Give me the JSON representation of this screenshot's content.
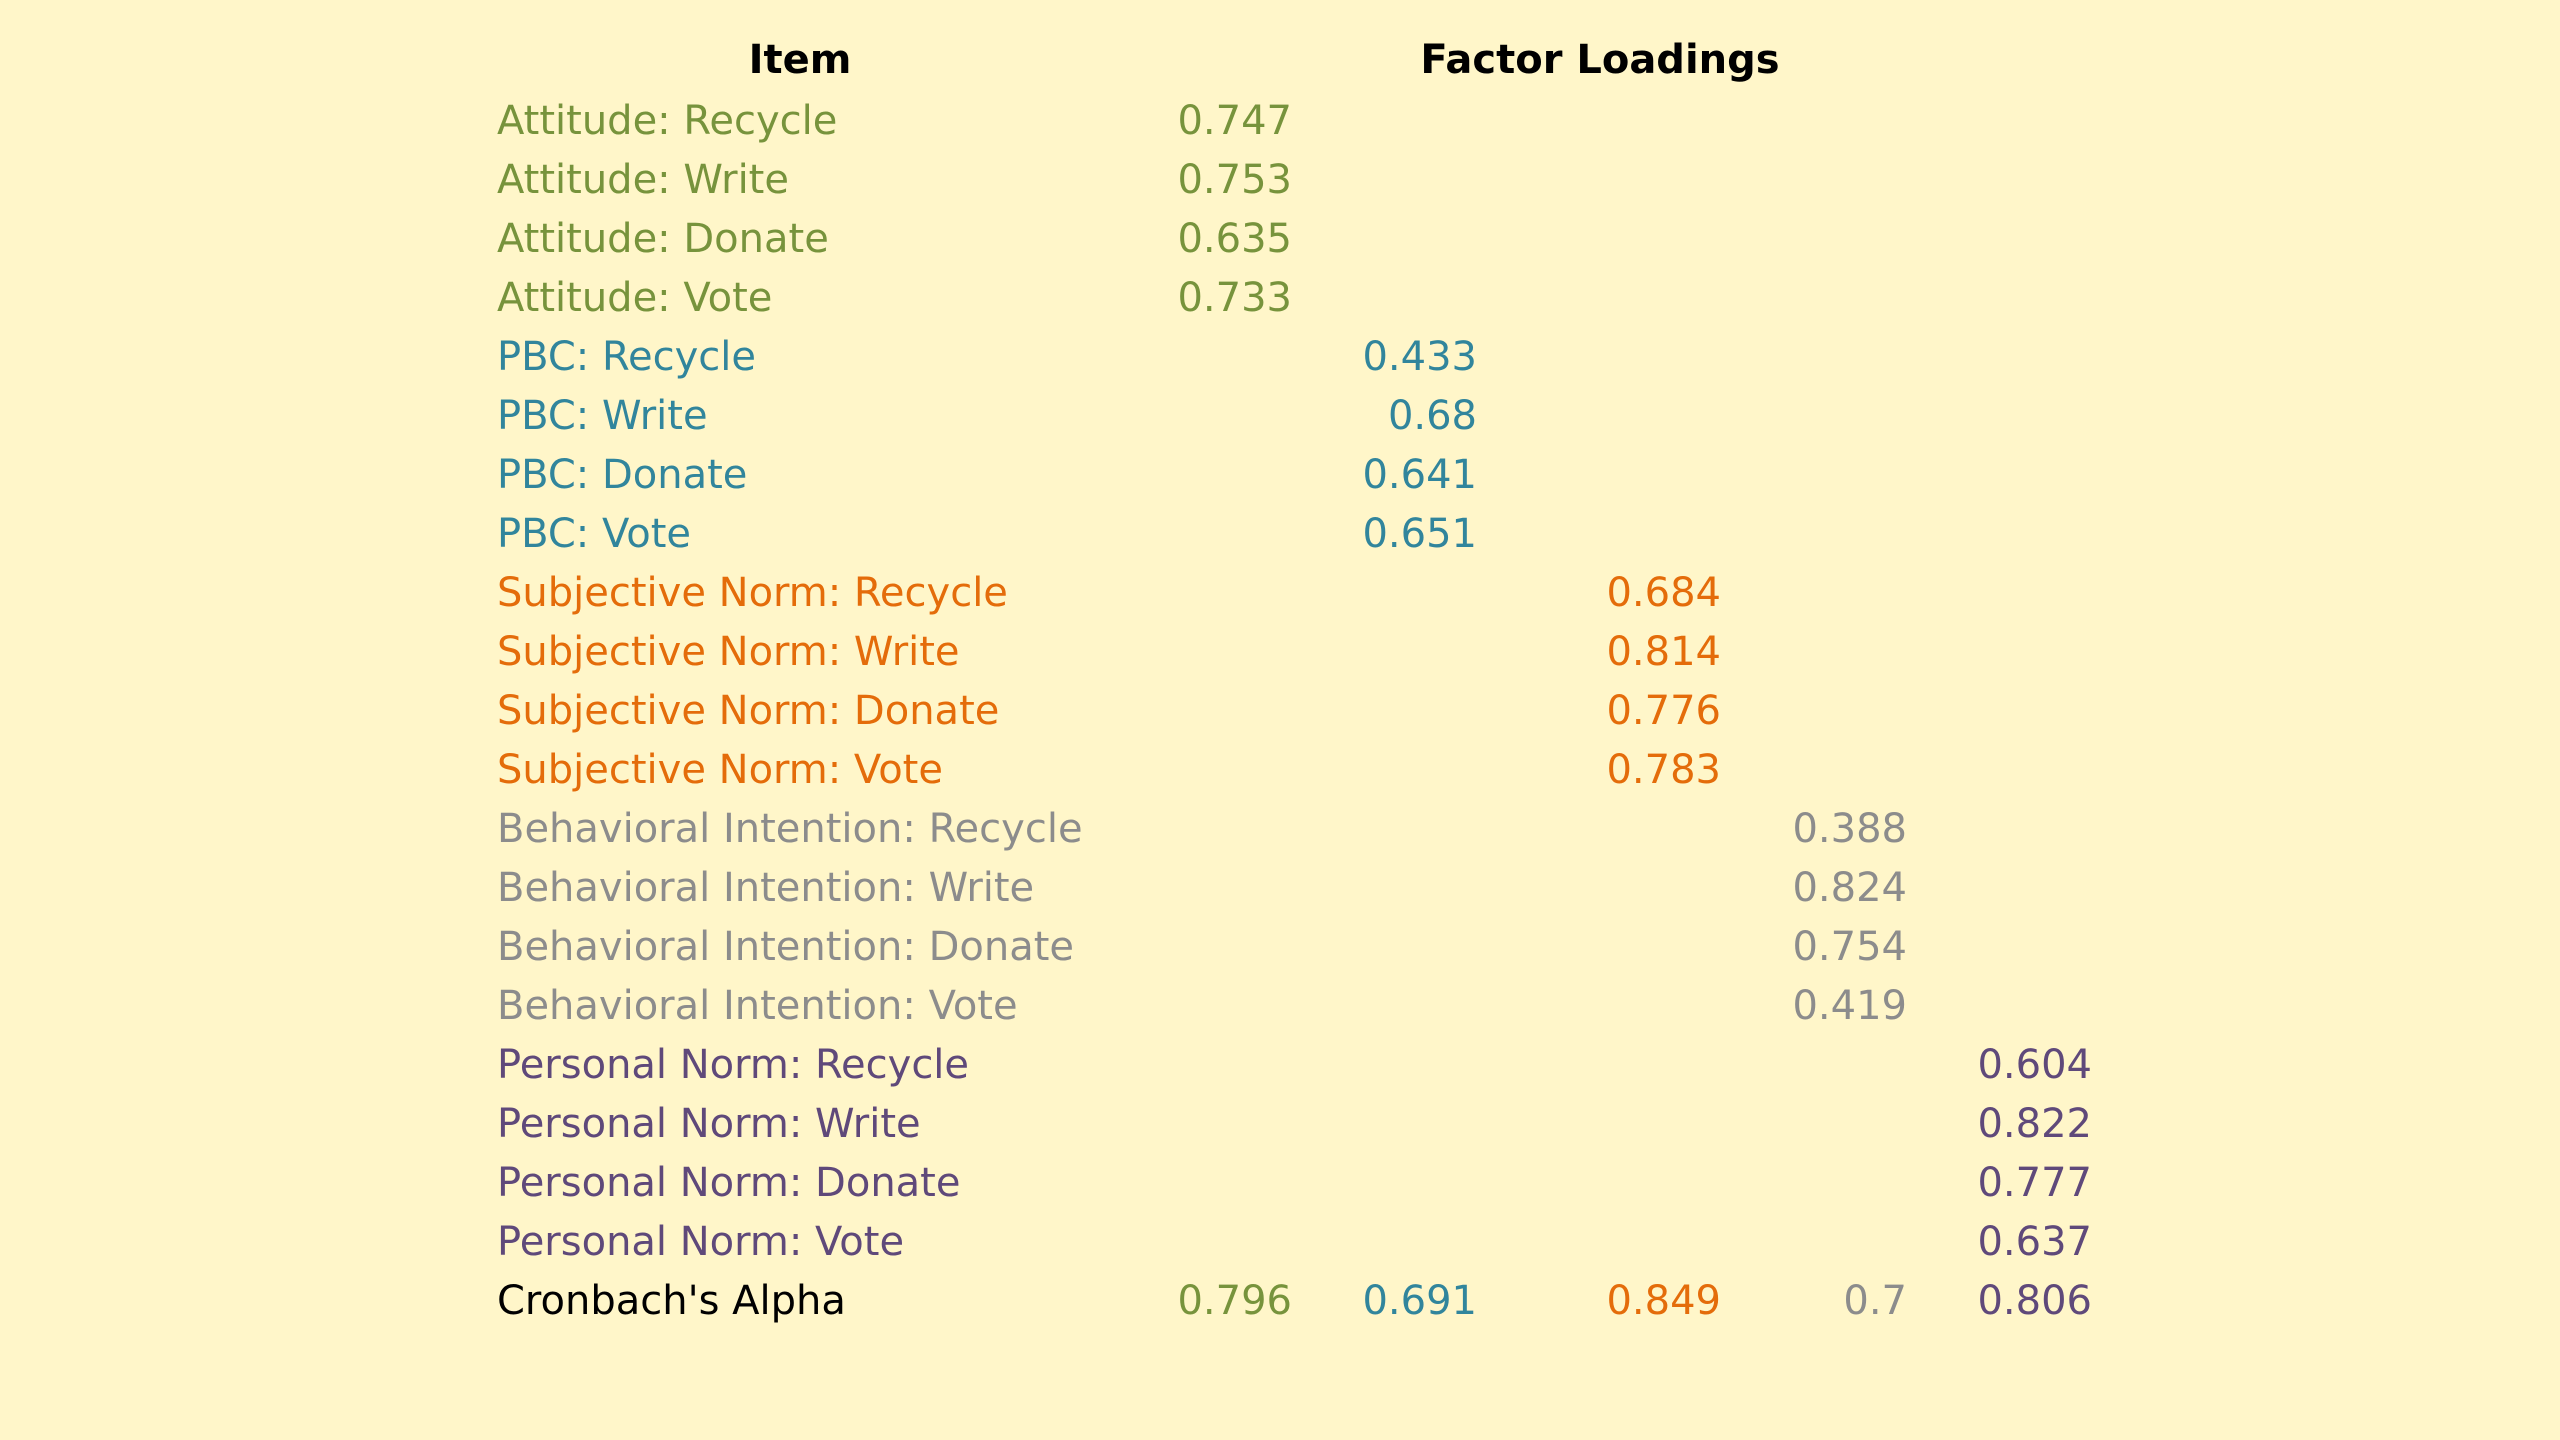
{
  "headers": {
    "item": "Item",
    "factor_loadings": "Factor Loadings"
  },
  "colors": {
    "attitude": "#77933C",
    "pbc": "#31859C",
    "subjective_norm": "#E46C0A",
    "behavioral_intention": "#8C8C8C",
    "personal_norm": "#5F497A",
    "alpha_label": "#000000",
    "background": "#FFF6C9"
  },
  "rows": [
    {
      "label": "Attitude: Recycle",
      "values": [
        "0.747",
        "",
        "",
        "",
        ""
      ]
    },
    {
      "label": "Attitude: Write",
      "values": [
        "0.753",
        "",
        "",
        "",
        ""
      ]
    },
    {
      "label": "Attitude: Donate",
      "values": [
        "0.635",
        "",
        "",
        "",
        ""
      ]
    },
    {
      "label": "Attitude: Vote",
      "values": [
        "0.733",
        "",
        "",
        "",
        ""
      ]
    },
    {
      "label": "PBC: Recycle",
      "values": [
        "",
        "0.433",
        "",
        "",
        ""
      ]
    },
    {
      "label": "PBC: Write",
      "values": [
        "",
        "0.68",
        "",
        "",
        ""
      ]
    },
    {
      "label": "PBC: Donate",
      "values": [
        "",
        "0.641",
        "",
        "",
        ""
      ]
    },
    {
      "label": "PBC: Vote",
      "values": [
        "",
        "0.651",
        "",
        "",
        ""
      ]
    },
    {
      "label": "Subjective Norm: Recycle",
      "values": [
        "",
        "",
        "0.684",
        "",
        ""
      ]
    },
    {
      "label": "Subjective Norm: Write",
      "values": [
        "",
        "",
        "0.814",
        "",
        ""
      ]
    },
    {
      "label": "Subjective Norm: Donate",
      "values": [
        "",
        "",
        "0.776",
        "",
        ""
      ]
    },
    {
      "label": "Subjective Norm: Vote",
      "values": [
        "",
        "",
        "0.783",
        "",
        ""
      ]
    },
    {
      "label": "Behavioral Intention: Recycle",
      "values": [
        "",
        "",
        "",
        "0.388",
        ""
      ]
    },
    {
      "label": "Behavioral Intention: Write",
      "values": [
        "",
        "",
        "",
        "0.824",
        ""
      ]
    },
    {
      "label": "Behavioral Intention: Donate",
      "values": [
        "",
        "",
        "",
        "0.754",
        ""
      ]
    },
    {
      "label": "Behavioral Intention: Vote",
      "values": [
        "",
        "",
        "",
        "0.419",
        ""
      ]
    },
    {
      "label": "Personal Norm: Recycle",
      "values": [
        "",
        "",
        "",
        "",
        "0.604"
      ]
    },
    {
      "label": "Personal Norm: Write",
      "values": [
        "",
        "",
        "",
        "",
        "0.822"
      ]
    },
    {
      "label": "Personal Norm: Donate",
      "values": [
        "",
        "",
        "",
        "",
        "0.777"
      ]
    },
    {
      "label": "Personal Norm: Vote",
      "values": [
        "",
        "",
        "",
        "",
        "0.637"
      ]
    },
    {
      "label": "Cronbach's Alpha",
      "values": [
        "0.796",
        "0.691",
        "0.849",
        "0.7",
        "0.806"
      ]
    }
  ]
}
